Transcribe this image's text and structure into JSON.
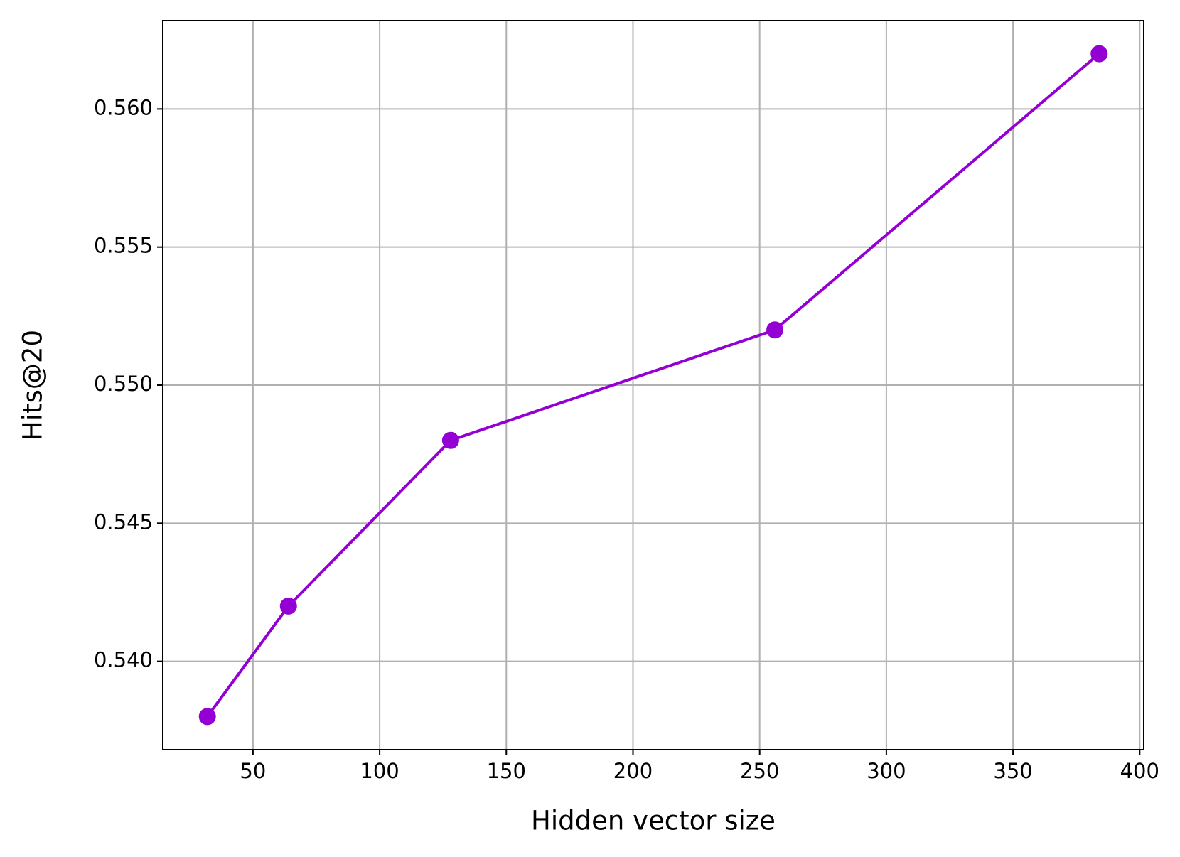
{
  "chart_data": {
    "type": "line",
    "x_label": "Hidden vector size",
    "y_label": "Hits@20",
    "x": [
      32,
      64,
      128,
      256,
      384
    ],
    "values": [
      0.538,
      0.542,
      0.548,
      0.552,
      0.562
    ],
    "color": "#9400d3",
    "xlim": [
      14.4,
      401.6
    ],
    "xticks": [
      50,
      100,
      150,
      200,
      250,
      300,
      350,
      400
    ],
    "ylim": [
      0.5368,
      0.5632
    ],
    "yticks": [
      {
        "value": 0.54,
        "label": "0.540"
      },
      0.545,
      {
        "value": 0.55,
        "label": "0.550"
      },
      0.555,
      {
        "value": 0.56,
        "label": "0.560"
      }
    ],
    "grid": true
  }
}
